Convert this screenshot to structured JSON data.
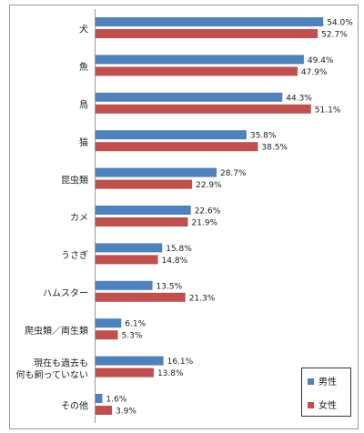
{
  "chart_data": {
    "type": "bar",
    "orientation": "horizontal",
    "categories": [
      "犬",
      "魚",
      "鳥",
      "猫",
      "昆虫類",
      "カメ",
      "うさぎ",
      "ハムスター",
      "爬虫類／両生類",
      "現在も過去も\n何も飼っていない",
      "その他"
    ],
    "series": [
      {
        "name": "男性",
        "values": [
          54.0,
          49.4,
          44.3,
          35.8,
          28.7,
          22.6,
          15.8,
          13.5,
          6.1,
          16.1,
          1.6
        ],
        "labels": [
          "54.0%",
          "49.4%",
          "44.3%",
          "35.8%",
          "28.7%",
          "22.6%",
          "15.8%",
          "13.5%",
          "6.1%",
          "16.1%",
          "1.6%"
        ],
        "color": "#4F81BD"
      },
      {
        "name": "女性",
        "values": [
          52.7,
          47.9,
          51.1,
          38.5,
          22.9,
          21.9,
          14.8,
          21.3,
          5.3,
          13.8,
          3.9
        ],
        "labels": [
          "52.7%",
          "47.9%",
          "51.1%",
          "38.5%",
          "22.9%",
          "21.9%",
          "14.8%",
          "21.3%",
          "5.3%",
          "13.8%",
          "3.9%"
        ],
        "color": "#C0504D"
      }
    ],
    "xlim": [
      0,
      60
    ],
    "grid": false,
    "legend_position": "bottom-right"
  }
}
